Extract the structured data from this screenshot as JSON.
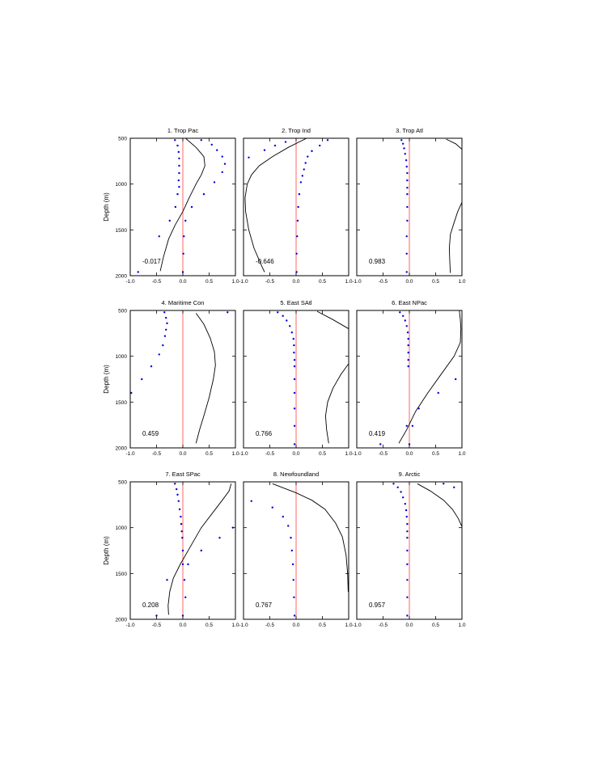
{
  "chart_data": {
    "type": "scatter",
    "ylabel": "Depth (m)",
    "xlim": [
      -1.0,
      1.0
    ],
    "ylim": [
      2000,
      500
    ],
    "x_ticks": [
      "-1.0",
      "-0.5",
      "0.0",
      "0.5",
      "1.0"
    ],
    "y_ticks": [
      "500",
      "1000",
      "1500",
      "2000"
    ],
    "zero_line_color": "#ff6666",
    "dot_color": "#0000dd",
    "curve_color": "#000000",
    "panels": [
      {
        "title": "1. Trop Pac",
        "corr_label": "-0.017",
        "dots": [
          [
            -0.15,
            520
          ],
          [
            -0.1,
            580
          ],
          [
            -0.08,
            650
          ],
          [
            -0.07,
            720
          ],
          [
            -0.07,
            800
          ],
          [
            -0.07,
            880
          ],
          [
            -0.08,
            960
          ],
          [
            -0.07,
            1030
          ],
          [
            -0.1,
            1110
          ],
          [
            -0.14,
            1250
          ],
          [
            -0.25,
            1400
          ],
          [
            -0.45,
            1570
          ],
          [
            -0.85,
            1960
          ],
          [
            0.35,
            520
          ],
          [
            0.55,
            570
          ],
          [
            0.65,
            630
          ],
          [
            0.75,
            700
          ],
          [
            0.8,
            780
          ],
          [
            0.75,
            870
          ],
          [
            0.6,
            980
          ],
          [
            0.4,
            1110
          ],
          [
            0.17,
            1250
          ],
          [
            0.05,
            1400
          ],
          [
            0.02,
            1570
          ],
          [
            0.01,
            1760
          ],
          [
            0.0,
            1960
          ]
        ],
        "curve": [
          [
            0.05,
            500
          ],
          [
            0.25,
            600
          ],
          [
            0.4,
            700
          ],
          [
            0.42,
            800
          ],
          [
            0.35,
            900
          ],
          [
            0.25,
            1000
          ],
          [
            0.12,
            1150
          ],
          [
            0.0,
            1300
          ],
          [
            -0.15,
            1450
          ],
          [
            -0.27,
            1600
          ],
          [
            -0.37,
            1800
          ],
          [
            -0.43,
            1950
          ]
        ]
      },
      {
        "title": "2. Trop Ind",
        "corr_label": "-0.646",
        "dots": [
          [
            -0.9,
            710
          ],
          [
            -0.6,
            630
          ],
          [
            -0.4,
            580
          ],
          [
            -0.2,
            540
          ],
          [
            0.6,
            520
          ],
          [
            0.45,
            580
          ],
          [
            0.3,
            640
          ],
          [
            0.22,
            700
          ],
          [
            0.18,
            770
          ],
          [
            0.15,
            840
          ],
          [
            0.12,
            910
          ],
          [
            0.09,
            980
          ],
          [
            0.06,
            1110
          ],
          [
            0.04,
            1250
          ],
          [
            0.03,
            1400
          ],
          [
            0.02,
            1570
          ],
          [
            0.01,
            1760
          ],
          [
            0.01,
            1960
          ]
        ],
        "curve": [
          [
            0.2,
            500
          ],
          [
            -0.15,
            600
          ],
          [
            -0.45,
            700
          ],
          [
            -0.7,
            800
          ],
          [
            -0.85,
            900
          ],
          [
            -0.93,
            1000
          ],
          [
            -0.97,
            1150
          ],
          [
            -0.96,
            1300
          ],
          [
            -0.9,
            1500
          ],
          [
            -0.8,
            1700
          ],
          [
            -0.65,
            1900
          ],
          [
            -0.6,
            1960
          ]
        ]
      },
      {
        "title": "3. Trop Atl",
        "corr_label": "0.983",
        "dots": [
          [
            -0.15,
            520
          ],
          [
            -0.12,
            560
          ],
          [
            -0.1,
            610
          ],
          [
            -0.08,
            670
          ],
          [
            -0.06,
            740
          ],
          [
            -0.05,
            810
          ],
          [
            -0.04,
            880
          ],
          [
            -0.04,
            960
          ],
          [
            -0.04,
            1040
          ],
          [
            -0.04,
            1110
          ],
          [
            -0.04,
            1250
          ],
          [
            -0.04,
            1400
          ],
          [
            -0.05,
            1570
          ],
          [
            -0.05,
            1760
          ],
          [
            -0.05,
            1960
          ]
        ],
        "curve_segments": [
          [
            [
              0.7,
              510
            ],
            [
              0.88,
              560
            ],
            [
              1.0,
              620
            ]
          ],
          [
            [
              1.0,
              1200
            ],
            [
              0.92,
              1300
            ],
            [
              0.85,
              1420
            ],
            [
              0.78,
              1550
            ],
            [
              0.76,
              1700
            ],
            [
              0.77,
              1850
            ],
            [
              0.78,
              1970
            ]
          ]
        ]
      },
      {
        "title": "4. Maritime Con",
        "corr_label": "0.459",
        "dots": [
          [
            -0.35,
            520
          ],
          [
            -0.32,
            580
          ],
          [
            -0.3,
            640
          ],
          [
            -0.32,
            710
          ],
          [
            -0.34,
            780
          ],
          [
            -0.38,
            880
          ],
          [
            -0.45,
            980
          ],
          [
            -0.6,
            1110
          ],
          [
            -0.78,
            1250
          ],
          [
            -0.98,
            1400
          ],
          [
            0.85,
            520
          ]
        ],
        "curve": [
          [
            0.25,
            530
          ],
          [
            0.4,
            650
          ],
          [
            0.52,
            800
          ],
          [
            0.6,
            950
          ],
          [
            0.62,
            1100
          ],
          [
            0.58,
            1250
          ],
          [
            0.5,
            1450
          ],
          [
            0.4,
            1650
          ],
          [
            0.32,
            1800
          ],
          [
            0.25,
            1950
          ]
        ]
      },
      {
        "title": "5. East SAtl",
        "corr_label": "0.766",
        "dots": [
          [
            -0.35,
            520
          ],
          [
            -0.25,
            560
          ],
          [
            -0.18,
            610
          ],
          [
            -0.12,
            670
          ],
          [
            -0.08,
            740
          ],
          [
            -0.05,
            810
          ],
          [
            -0.04,
            880
          ],
          [
            -0.04,
            960
          ],
          [
            -0.03,
            1040
          ],
          [
            -0.03,
            1110
          ],
          [
            -0.03,
            1250
          ],
          [
            -0.03,
            1400
          ],
          [
            -0.03,
            1570
          ],
          [
            -0.03,
            1760
          ],
          [
            -0.03,
            1960
          ]
        ],
        "curve_segments": [
          [
            [
              0.4,
              510
            ],
            [
              0.7,
              600
            ],
            [
              1.0,
              700
            ]
          ],
          [
            [
              1.0,
              1080
            ],
            [
              0.85,
              1200
            ],
            [
              0.7,
              1350
            ],
            [
              0.6,
              1500
            ],
            [
              0.56,
              1650
            ],
            [
              0.58,
              1800
            ],
            [
              0.62,
              1950
            ]
          ]
        ]
      },
      {
        "title": "6. East NPac",
        "corr_label": "0.419",
        "dots": [
          [
            -0.18,
            520
          ],
          [
            -0.12,
            560
          ],
          [
            -0.08,
            610
          ],
          [
            -0.05,
            670
          ],
          [
            -0.03,
            740
          ],
          [
            -0.02,
            810
          ],
          [
            -0.02,
            880
          ],
          [
            -0.02,
            960
          ],
          [
            -0.02,
            1040
          ],
          [
            -0.02,
            1110
          ],
          [
            0.88,
            1250
          ],
          [
            0.55,
            1400
          ],
          [
            0.18,
            1570
          ],
          [
            0.06,
            1760
          ],
          [
            0.0,
            1960
          ],
          [
            -0.55,
            1960
          ],
          [
            -0.05,
            1760
          ]
        ],
        "curve": [
          [
            0.95,
            500
          ],
          [
            0.97,
            600
          ],
          [
            0.98,
            700
          ],
          [
            0.97,
            850
          ],
          [
            0.85,
            1000
          ],
          [
            0.6,
            1200
          ],
          [
            0.35,
            1400
          ],
          [
            0.12,
            1600
          ],
          [
            -0.05,
            1800
          ],
          [
            -0.2,
            1950
          ]
        ]
      },
      {
        "title": "7. East SPac",
        "corr_label": "0.208",
        "dots": [
          [
            -0.15,
            520
          ],
          [
            -0.12,
            580
          ],
          [
            -0.1,
            640
          ],
          [
            -0.08,
            710
          ],
          [
            -0.06,
            800
          ],
          [
            -0.04,
            880
          ],
          [
            -0.03,
            960
          ],
          [
            -0.02,
            1040
          ],
          [
            -0.01,
            1110
          ],
          [
            0.0,
            1250
          ],
          [
            0.0,
            1400
          ],
          [
            -0.3,
            1570
          ],
          [
            -0.5,
            1960
          ],
          [
            0.05,
            1760
          ],
          [
            0.0,
            1960
          ],
          [
            0.7,
            1110
          ],
          [
            0.35,
            1250
          ],
          [
            0.1,
            1400
          ],
          [
            0.03,
            1570
          ],
          [
            0.95,
            1000
          ]
        ],
        "curve": [
          [
            0.92,
            520
          ],
          [
            0.88,
            600
          ],
          [
            0.75,
            700
          ],
          [
            0.55,
            850
          ],
          [
            0.35,
            1000
          ],
          [
            0.15,
            1200
          ],
          [
            -0.05,
            1400
          ],
          [
            -0.18,
            1550
          ],
          [
            -0.25,
            1700
          ],
          [
            -0.28,
            1850
          ],
          [
            -0.27,
            1950
          ]
        ]
      },
      {
        "title": "8. Newfoundland",
        "corr_label": "0.767",
        "dots": [
          [
            -0.85,
            710
          ],
          [
            -0.45,
            780
          ],
          [
            -0.25,
            880
          ],
          [
            -0.15,
            980
          ],
          [
            -0.1,
            1110
          ],
          [
            -0.08,
            1250
          ],
          [
            -0.06,
            1400
          ],
          [
            -0.05,
            1570
          ],
          [
            -0.04,
            1760
          ],
          [
            -0.03,
            1960
          ]
        ],
        "curve": [
          [
            -0.45,
            520
          ],
          [
            0.0,
            620
          ],
          [
            0.3,
            700
          ],
          [
            0.55,
            800
          ],
          [
            0.75,
            950
          ],
          [
            0.88,
            1100
          ],
          [
            0.95,
            1300
          ],
          [
            0.98,
            1500
          ],
          [
            0.99,
            1700
          ]
        ]
      },
      {
        "title": "9. Arctic",
        "corr_label": "0.957",
        "dots": [
          [
            -0.3,
            520
          ],
          [
            -0.22,
            560
          ],
          [
            -0.16,
            610
          ],
          [
            -0.12,
            670
          ],
          [
            -0.08,
            740
          ],
          [
            -0.06,
            810
          ],
          [
            -0.05,
            880
          ],
          [
            -0.04,
            960
          ],
          [
            -0.04,
            1040
          ],
          [
            -0.04,
            1110
          ],
          [
            -0.04,
            1250
          ],
          [
            -0.04,
            1400
          ],
          [
            -0.04,
            1570
          ],
          [
            -0.04,
            1760
          ],
          [
            -0.04,
            1960
          ],
          [
            0.65,
            520
          ],
          [
            0.85,
            560
          ]
        ],
        "curve": [
          [
            0.15,
            520
          ],
          [
            0.4,
            600
          ],
          [
            0.65,
            700
          ],
          [
            0.82,
            800
          ],
          [
            0.93,
            900
          ],
          [
            1.0,
            990
          ]
        ]
      }
    ]
  }
}
